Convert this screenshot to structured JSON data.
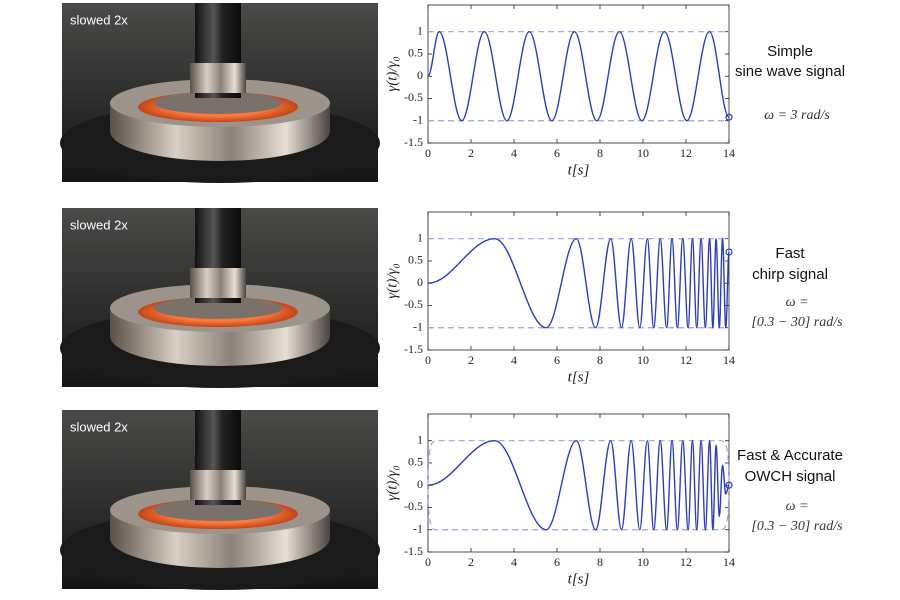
{
  "photos": [
    {
      "caption": "slowed 2x"
    },
    {
      "caption": "slowed 2x"
    },
    {
      "caption": "slowed 2x"
    }
  ],
  "chart_data": [
    {
      "type": "line",
      "xlabel": "t[s]",
      "ylabel": "γ(t)/γ₀",
      "x": [
        0,
        0.52,
        1.57,
        2.62,
        3.67,
        4.71,
        5.76,
        6.81,
        7.85,
        8.9,
        9.95,
        11,
        12.04,
        13.09,
        14
      ],
      "values": [
        0,
        1,
        -1,
        1,
        -1,
        1,
        -1,
        1,
        -1,
        1,
        -1,
        1,
        -1,
        1,
        -0.92
      ],
      "color": "#2b3fb8",
      "envelope": [
        -1,
        1
      ],
      "envelope_color": "#9aa3e0",
      "end_marker": true,
      "xlim": [
        0,
        14
      ],
      "ylim": [
        -1.5,
        1.6
      ],
      "xticks": [
        0,
        2,
        4,
        6,
        8,
        10,
        12,
        14
      ],
      "yticks": [
        -1.5,
        -1,
        -0.5,
        0,
        0.5,
        1
      ],
      "annotations": [
        "Simple",
        "sine wave signal"
      ],
      "formula": [
        "ω = 3 rad/s"
      ]
    },
    {
      "type": "line",
      "xlabel": "t[s]",
      "ylabel": "γ(t)/γ₀",
      "x": [
        0,
        3.1,
        5.5,
        6.9,
        7.8,
        8.5,
        9.0,
        9.45,
        9.85,
        10.2,
        10.5,
        10.8,
        11.1,
        11.35,
        11.6,
        11.85,
        12.1,
        12.3,
        12.5,
        12.7,
        12.9,
        13.1,
        13.25,
        13.4,
        13.55,
        13.7,
        13.85,
        14
      ],
      "values": [
        0,
        1,
        -1,
        1,
        -1,
        1,
        -1,
        1,
        -1,
        1,
        -1,
        1,
        -1,
        1,
        -1,
        1,
        -1,
        1,
        -1,
        1,
        -1,
        1,
        -1,
        1,
        -1,
        1,
        -1,
        0.7
      ],
      "color": "#2b3fb8",
      "envelope": [
        -1,
        1
      ],
      "envelope_color": "#9aa3e0",
      "end_marker": true,
      "xlim": [
        0,
        14
      ],
      "ylim": [
        -1.5,
        1.6
      ],
      "xticks": [
        0,
        2,
        4,
        6,
        8,
        10,
        12,
        14
      ],
      "yticks": [
        -1.5,
        -1,
        -0.5,
        0,
        0.5,
        1
      ],
      "annotations": [
        "Fast",
        "chirp signal"
      ],
      "formula": [
        "ω =",
        "[0.3 − 30] rad/s"
      ]
    },
    {
      "type": "line",
      "xlabel": "t[s]",
      "ylabel": "γ(t)/γ₀",
      "x": [
        0,
        3.1,
        5.5,
        6.9,
        7.8,
        8.5,
        9.0,
        9.45,
        9.85,
        10.2,
        10.5,
        10.8,
        11.1,
        11.35,
        11.6,
        11.85,
        12.1,
        12.3,
        12.5,
        12.7,
        12.9,
        13.1,
        13.25,
        13.4,
        13.55,
        13.7,
        13.85,
        14
      ],
      "values": [
        0,
        1,
        -1,
        1,
        -1,
        1,
        -1,
        1,
        -1,
        1,
        -1,
        1,
        -1,
        1,
        -1,
        1,
        -1,
        1,
        -1,
        1,
        -1,
        1,
        -1,
        0.9,
        -0.7,
        0.45,
        -0.2,
        0
      ],
      "color": "#2b3fb8",
      "envelope": [
        -1,
        1
      ],
      "envelope_taper": [
        0.4,
        13.6
      ],
      "envelope_color": "#9aa3e0",
      "end_marker": true,
      "xlim": [
        0,
        14
      ],
      "ylim": [
        -1.5,
        1.6
      ],
      "xticks": [
        0,
        2,
        4,
        6,
        8,
        10,
        12,
        14
      ],
      "yticks": [
        -1.5,
        -1,
        -0.5,
        0,
        0.5,
        1
      ],
      "annotations": [
        "Fast & Accurate",
        "OWCH signal"
      ],
      "formula": [
        "ω =",
        "[0.3 − 30] rad/s"
      ]
    }
  ]
}
